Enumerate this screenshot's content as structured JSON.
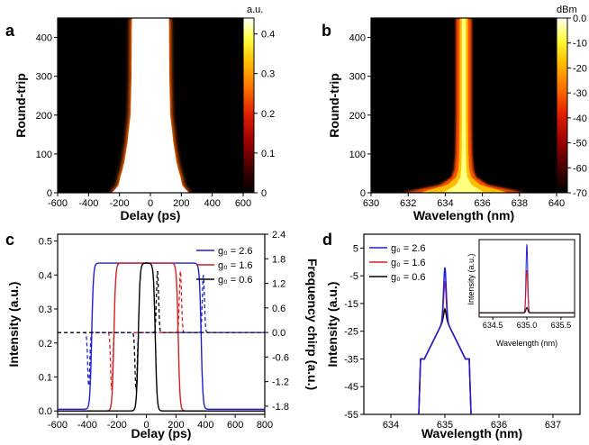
{
  "figure": {
    "panel_a": {
      "label": "a",
      "xlabel": "Delay (ps)",
      "ylabel": "Round-trip",
      "colorbar_unit": "a.u.",
      "colorbar_ticks": [
        "0.4",
        "0.3",
        "0.2",
        "0.1",
        "0"
      ]
    },
    "panel_b": {
      "label": "b",
      "xlabel": "Wavelength (nm)",
      "ylabel": "Round-trip",
      "colorbar_unit": "dBm",
      "colorbar_ticks": [
        "0.0",
        "-10",
        "-20",
        "-30",
        "-40",
        "-50",
        "-60",
        "-70"
      ]
    },
    "panel_c": {
      "label": "c",
      "xlabel": "Delay (ps)",
      "ylabel": "Intensity (a.u.)",
      "y2label": "Frequency chirp (a.u.)",
      "legend": [
        {
          "text": "g₀ = 2.6",
          "color": "#1f1fd6"
        },
        {
          "text": "g₀ = 1.6",
          "color": "#d61f1f"
        },
        {
          "text": "g₀ = 0.6",
          "color": "#000000"
        }
      ]
    },
    "panel_d": {
      "label": "d",
      "xlabel": "Wavelength (nm)",
      "ylabel": "Intensity (a.u.)",
      "inset_xlabel": "Wavelength (nm)",
      "inset_ylabel": "Intensity (a.u.)",
      "inset_xticks": [
        "634.5",
        "635.0",
        "635.5"
      ],
      "legend": [
        {
          "text": "g₀ = 2.6",
          "color": "#1f1fd6"
        },
        {
          "text": "g₀ = 1.6",
          "color": "#d61f1f"
        },
        {
          "text": "g₀ = 0.6",
          "color": "#000000"
        }
      ]
    }
  },
  "chart_data": [
    {
      "type": "heatmap",
      "panel": "a",
      "xlabel": "Delay (ps)",
      "ylabel": "Round-trip",
      "xlim": [
        -600,
        600
      ],
      "ylim": [
        0,
        450
      ],
      "xticks": [
        -600,
        -400,
        -200,
        0,
        200,
        400,
        600
      ],
      "yticks": [
        0,
        100,
        200,
        300,
        400
      ],
      "colorbar": {
        "label": "a.u.",
        "range": [
          0,
          0.44
        ],
        "ticks": [
          0,
          0.1,
          0.2,
          0.3,
          0.4
        ]
      },
      "pulse_halfwidth_vs_roundtrip": {
        "round_trip": [
          0,
          10,
          20,
          40,
          60,
          80,
          100,
          130,
          160,
          200,
          300,
          450
        ],
        "halfwidth_ps": [
          250,
          225,
          205,
          195,
          180,
          168,
          160,
          148,
          140,
          128,
          122,
          120
        ]
      }
    },
    {
      "type": "heatmap",
      "panel": "b",
      "xlabel": "Wavelength (nm)",
      "ylabel": "Round-trip",
      "xlim": [
        630,
        640
      ],
      "ylim": [
        0,
        450
      ],
      "xticks": [
        630,
        632,
        634,
        636,
        638,
        640
      ],
      "yticks": [
        0,
        100,
        200,
        300,
        400
      ],
      "colorbar": {
        "label": "dBm",
        "range": [
          -70,
          0
        ],
        "ticks": [
          0,
          -10,
          -20,
          -30,
          -40,
          -50,
          -60,
          -70
        ]
      },
      "spectral_halfwidth_vs_roundtrip": {
        "round_trip": [
          0,
          10,
          20,
          40,
          60,
          100,
          200,
          450
        ],
        "halfwidth_nm": [
          3.2,
          2.2,
          1.2,
          0.55,
          0.4,
          0.33,
          0.3,
          0.3
        ]
      }
    },
    {
      "type": "line",
      "panel": "c",
      "xlabel": "Delay (ps)",
      "ylabel": "Intensity (a.u.)",
      "y2label": "Frequency chirp (a.u.)",
      "xlim": [
        -600,
        800
      ],
      "ylim": [
        -0.01,
        0.52
      ],
      "y2lim": [
        -2.0,
        2.4
      ],
      "xticks": [
        -600,
        -400,
        -200,
        0,
        200,
        400,
        600,
        800
      ],
      "yticks": [
        0.0,
        0.1,
        0.2,
        0.3,
        0.4,
        0.5
      ],
      "y2ticks": [
        -1.8,
        -1.2,
        -0.6,
        0.0,
        0.6,
        1.2,
        1.8,
        2.4
      ],
      "series": [
        {
          "name": "g₀ = 2.6",
          "color": "#1f1fd6",
          "intensity": {
            "left_edge": -370,
            "right_edge": 370,
            "peak": 0.435,
            "base": 0.005
          },
          "chirp": {
            "neg_peak_x": -390,
            "neg_peak": -1.3,
            "pos_peak_x": 385,
            "pos_peak": 1.4
          }
        },
        {
          "name": "g₀ = 1.6",
          "color": "#d61f1f",
          "intensity": {
            "left_edge": -220,
            "right_edge": 215,
            "peak": 0.435,
            "base": 0.0
          },
          "chirp": {
            "neg_peak_x": -235,
            "neg_peak": -1.4,
            "pos_peak_x": 230,
            "pos_peak": 1.5
          }
        },
        {
          "name": "g₀ = 0.6",
          "color": "#000000",
          "intensity": {
            "left_edge": -55,
            "right_edge": 60,
            "peak": 0.435,
            "base": 0.0
          },
          "chirp": {
            "neg_peak_x": -70,
            "neg_peak": -1.4,
            "pos_peak_x": 75,
            "pos_peak": 1.5
          }
        }
      ]
    },
    {
      "type": "line",
      "panel": "d",
      "xlabel": "Wavelength (nm)",
      "ylabel": "Intensity (a.u.)",
      "xlim": [
        633.5,
        637.5
      ],
      "ylim": [
        -55,
        10
      ],
      "xticks": [
        634,
        635,
        636,
        637
      ],
      "yticks": [
        5,
        -5,
        -15,
        -25,
        -35,
        -45,
        -55
      ],
      "series": [
        {
          "name": "g₀ = 2.6",
          "color": "#1f1fd6",
          "peak": -2
        },
        {
          "name": "g₀ = 1.6",
          "color": "#d61f1f",
          "peak": -7
        },
        {
          "name": "g₀ = 0.6",
          "color": "#000000",
          "peak": -17
        }
      ],
      "inset": {
        "xlim": [
          634.3,
          635.7
        ],
        "xticks": [
          634.5,
          635.0,
          635.5
        ],
        "peaks": [
          1.0,
          0.62,
          0.08
        ]
      }
    }
  ]
}
